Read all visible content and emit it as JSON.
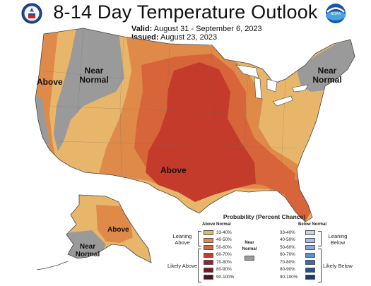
{
  "header": {
    "title": "8-14 Day Temperature Outlook",
    "valid_label": "Valid:",
    "valid_value": "August 31 - September 6, 2023",
    "issued_label": "Issued:",
    "issued_value": "August 23, 2023"
  },
  "logos": {
    "left": "noaa-department-of-commerce-seal",
    "right": "noaa-logo",
    "right_text": "NOAA"
  },
  "map_labels": {
    "west_above": "Above",
    "rockies_near_normal": "Near Normal",
    "northeast_near_normal": "Near Normal",
    "southcentral_above": "Above",
    "alaska_above": "Above",
    "alaska_near_normal": "Near Normal"
  },
  "legend": {
    "title": "Probability (Percent Chance)",
    "above_heading": "Above Normal",
    "below_heading": "Below Normal",
    "near_label": "Near Normal",
    "leaning_above": "Leaning Above",
    "likely_above": "Likely Above",
    "leaning_below": "Leaning Below",
    "likely_below": "Likely Below",
    "above": [
      {
        "range": "33-40%",
        "color": "#e8b66b"
      },
      {
        "range": "40-50%",
        "color": "#df8a48"
      },
      {
        "range": "50-60%",
        "color": "#d8643a"
      },
      {
        "range": "60-70%",
        "color": "#c43b2b"
      },
      {
        "range": "70-80%",
        "color": "#9e2228"
      },
      {
        "range": "80-90%",
        "color": "#7a1a22"
      },
      {
        "range": "90-100%",
        "color": "#55121a"
      }
    ],
    "below": [
      {
        "range": "33-40%",
        "color": "#c6d3ec"
      },
      {
        "range": "40-50%",
        "color": "#a7bde3"
      },
      {
        "range": "50-60%",
        "color": "#86a9d9"
      },
      {
        "range": "60-70%",
        "color": "#5c8fce"
      },
      {
        "range": "70-80%",
        "color": "#3a6bb8"
      },
      {
        "range": "80-90%",
        "color": "#25509a"
      },
      {
        "range": "90-100%",
        "color": "#183a78"
      }
    ],
    "near_color": "#9a9a9a"
  }
}
